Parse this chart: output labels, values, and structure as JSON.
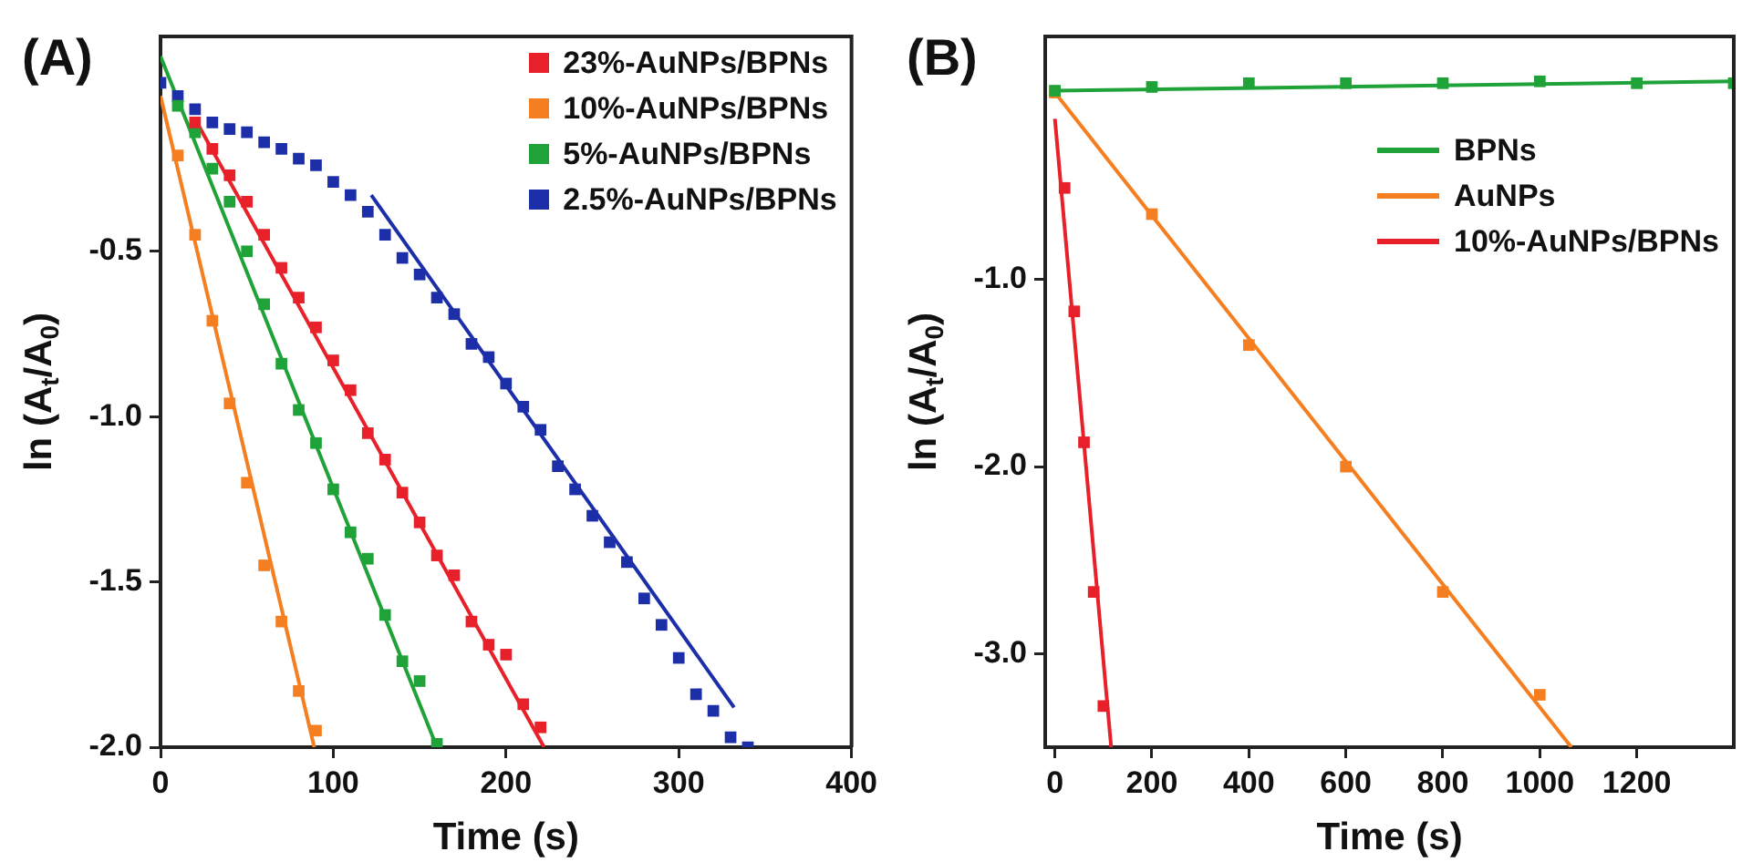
{
  "chart_data": [
    {
      "type": "scatter",
      "title": "(A)",
      "xlabel": "Time (s)",
      "ylabel": "ln (A$_{t}$/A$_{0}$)",
      "xlim": [
        0,
        400
      ],
      "ylim": [
        -2.0,
        0.15
      ],
      "xticks": [
        0,
        100,
        200,
        300,
        400
      ],
      "yticks": [
        {
          "value": -2.0,
          "label": "-2.0"
        },
        {
          "value": -1.5,
          "label": "-1.5"
        },
        {
          "value": -1.0,
          "label": "-1.0"
        },
        {
          "value": -0.5,
          "label": "-0.5"
        }
      ],
      "grid": false,
      "legend": "top right",
      "series": [
        {
          "name": "23%-AuNPs/BPNs",
          "marker": "square",
          "color": "#e8202a",
          "x": [
            20,
            30,
            40,
            50,
            60,
            70,
            80,
            90,
            100,
            110,
            120,
            130,
            140,
            150,
            160,
            170,
            180,
            190,
            200,
            210,
            220
          ],
          "values": [
            -0.11,
            -0.19,
            -0.27,
            -0.35,
            -0.45,
            -0.55,
            -0.64,
            -0.73,
            -0.83,
            -0.92,
            -1.05,
            -1.13,
            -1.23,
            -1.32,
            -1.42,
            -1.48,
            -1.62,
            -1.69,
            -1.72,
            -1.87,
            -1.94
          ]
        },
        {
          "name": "10%-AuNPs/BPNs",
          "marker": "square",
          "color": "#f57f20",
          "x": [
            10,
            20,
            30,
            40,
            50,
            60,
            70,
            80,
            90
          ],
          "values": [
            -0.21,
            -0.45,
            -0.71,
            -0.96,
            -1.2,
            -1.45,
            -1.62,
            -1.83,
            -1.95
          ]
        },
        {
          "name": "5%-AuNPs/BPNs",
          "marker": "square",
          "color": "#1fa339",
          "x": [
            10,
            20,
            30,
            40,
            50,
            60,
            70,
            80,
            90,
            100,
            110,
            120,
            130,
            140,
            150,
            160
          ],
          "values": [
            -0.06,
            -0.14,
            -0.25,
            -0.35,
            -0.5,
            -0.66,
            -0.84,
            -0.98,
            -1.08,
            -1.22,
            -1.35,
            -1.43,
            -1.6,
            -1.74,
            -1.8,
            -1.99
          ]
        },
        {
          "name": "2.5%-AuNPs/BPNs",
          "marker": "square",
          "color": "#1c2fa8",
          "x": [
            0,
            10,
            20,
            30,
            40,
            50,
            60,
            70,
            80,
            90,
            100,
            110,
            120,
            130,
            140,
            150,
            160,
            170,
            180,
            190,
            200,
            210,
            220,
            230,
            240,
            250,
            260,
            270,
            280,
            290,
            300,
            310,
            320,
            330,
            340
          ],
          "values": [
            0.01,
            -0.03,
            -0.07,
            -0.11,
            -0.13,
            -0.14,
            -0.17,
            -0.19,
            -0.22,
            -0.24,
            -0.29,
            -0.33,
            -0.38,
            -0.45,
            -0.52,
            -0.57,
            -0.64,
            -0.69,
            -0.78,
            -0.82,
            -0.9,
            -0.97,
            -1.04,
            -1.15,
            -1.22,
            -1.3,
            -1.38,
            -1.44,
            -1.55,
            -1.63,
            -1.73,
            -1.84,
            -1.89,
            -1.97,
            -2.0
          ]
        },
        {
          "type": "line",
          "marker": "none",
          "color": "#e8202a",
          "x": [
            20,
            222
          ],
          "values": [
            -0.1,
            -2.0
          ]
        },
        {
          "type": "line",
          "marker": "none",
          "color": "#f57f20",
          "x": [
            0,
            89
          ],
          "values": [
            -0.03,
            -2.0
          ]
        },
        {
          "type": "line",
          "marker": "none",
          "color": "#1fa339",
          "x": [
            0,
            160
          ],
          "values": [
            0.09,
            -2.0
          ]
        },
        {
          "type": "line",
          "marker": "none",
          "color": "#1c2fa8",
          "x": [
            122,
            332
          ],
          "values": [
            -0.33,
            -1.88
          ]
        }
      ]
    },
    {
      "type": "scatter",
      "title": "(B)",
      "xlabel": "Time (s)",
      "ylabel": "ln (A$_{t}$/A$_{0}$)",
      "xlim": [
        -20,
        1400
      ],
      "ylim": [
        -3.5,
        0.3
      ],
      "xticks": [
        0,
        200,
        400,
        600,
        800,
        1000,
        1200
      ],
      "yticks": [
        {
          "value": -3.0,
          "label": "-3.0"
        },
        {
          "value": -2.0,
          "label": "-2.0"
        },
        {
          "value": -1.0,
          "label": "-1.0"
        }
      ],
      "grid": false,
      "legend": "top right",
      "series": [
        {
          "name": "BPNs",
          "type": "line",
          "marker": "none",
          "color": "#1fa339",
          "x": [
            0,
            1400
          ],
          "values": [
            0.01,
            0.06
          ]
        },
        {
          "name": "AuNPs",
          "type": "line",
          "marker": "none",
          "color": "#f57f20",
          "x": [
            0,
            1065
          ],
          "values": [
            0.0,
            -3.5
          ]
        },
        {
          "name": "10%-AuNPs/BPNs",
          "type": "line",
          "marker": "none",
          "color": "#e8202a",
          "x": [
            0,
            116
          ],
          "values": [
            -0.14,
            -3.5
          ]
        },
        {
          "marker": "square",
          "color": "#1fa339",
          "x": [
            0,
            200,
            400,
            600,
            800,
            1000,
            1200,
            1400
          ],
          "values": [
            0.01,
            0.03,
            0.05,
            0.05,
            0.05,
            0.06,
            0.05,
            0.05
          ]
        },
        {
          "marker": "square",
          "color": "#f57f20",
          "x": [
            0,
            200,
            400,
            600,
            800,
            1000
          ],
          "values": [
            0.0,
            -0.65,
            -1.35,
            -2.0,
            -2.67,
            -3.22
          ]
        },
        {
          "marker": "square",
          "color": "#e8202a",
          "x": [
            20,
            40,
            60,
            80,
            100
          ],
          "values": [
            -0.51,
            -1.17,
            -1.87,
            -2.67,
            -3.28
          ]
        }
      ]
    }
  ]
}
